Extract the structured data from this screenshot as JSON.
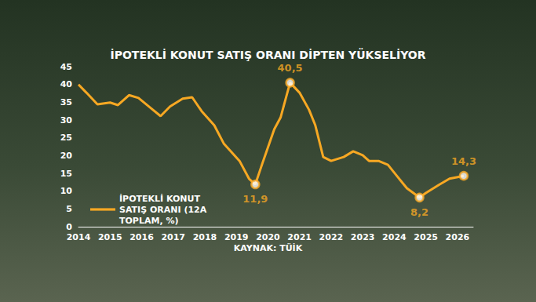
{
  "chart_data": {
    "type": "line",
    "title": "İPOTEKLİ KONUT SATIŞ ORANI DİPTEN YÜKSELİYOR",
    "source": "KAYNAK: TÜİK",
    "x": [
      2014.0,
      2014.25,
      2014.6,
      2015.0,
      2015.25,
      2015.6,
      2015.9,
      2016.3,
      2016.6,
      2016.9,
      2017.3,
      2017.6,
      2017.9,
      2018.3,
      2018.6,
      2019.1,
      2019.4,
      2019.6,
      2019.85,
      2020.2,
      2020.4,
      2020.7,
      2021.0,
      2021.3,
      2021.5,
      2021.75,
      2022.0,
      2022.4,
      2022.7,
      2023.0,
      2023.2,
      2023.5,
      2023.8,
      2024.1,
      2024.4,
      2024.8,
      2025.0,
      2025.4,
      2025.75,
      2026.2
    ],
    "series": [
      {
        "name": "İPOTEKLİ KONUT SATIŞ ORANI (12A TOPLAM, %)",
        "color": "#f7a823",
        "values": [
          40.0,
          37.7,
          34.4,
          34.9,
          34.2,
          37.0,
          36.2,
          33.3,
          31.1,
          33.8,
          36.0,
          36.4,
          32.5,
          28.5,
          23.4,
          18.5,
          13.5,
          11.9,
          18.5,
          27.4,
          30.7,
          40.5,
          37.7,
          32.9,
          28.5,
          19.6,
          18.5,
          19.6,
          21.2,
          20.1,
          18.5,
          18.5,
          17.4,
          14.1,
          10.8,
          8.2,
          9.5,
          11.7,
          13.5,
          14.3
        ]
      }
    ],
    "annotations": [
      {
        "x": 2020.7,
        "y": 40.5,
        "label": "40,5"
      },
      {
        "x": 2019.6,
        "y": 11.9,
        "label": "11,9"
      },
      {
        "x": 2024.8,
        "y": 8.2,
        "label": "8,2"
      },
      {
        "x": 2026.2,
        "y": 14.3,
        "label": "14,3"
      }
    ],
    "xlim": [
      2014,
      2026.5
    ],
    "xticks": [
      2014,
      2015,
      2016,
      2017,
      2018,
      2019,
      2020,
      2021,
      2022,
      2023,
      2024,
      2025,
      2026
    ],
    "ylim": [
      0,
      45
    ],
    "yticks": [
      0,
      5,
      10,
      15,
      20,
      25,
      30,
      35,
      40,
      45
    ],
    "grid": false,
    "legend": "bottom-left"
  }
}
